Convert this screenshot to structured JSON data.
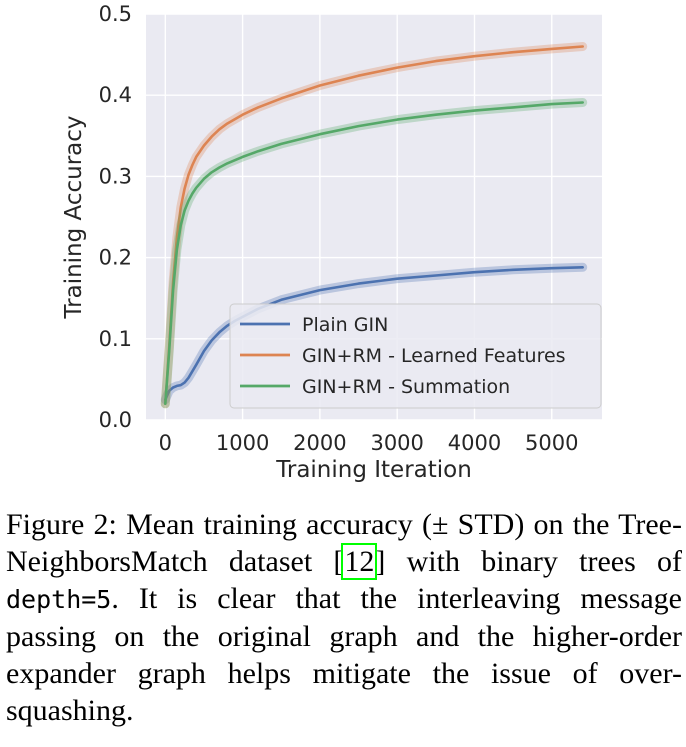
{
  "chart_data": {
    "type": "line",
    "xlabel": "Training Iteration",
    "ylabel": "Training Accuracy",
    "xticks": [
      0,
      1000,
      2000,
      3000,
      4000,
      5000
    ],
    "yticks": [
      0.0,
      0.1,
      0.2,
      0.3,
      0.4,
      0.5
    ],
    "xlim": [
      -250,
      5650
    ],
    "ylim": [
      0.0,
      0.5
    ],
    "grid": true,
    "legend_position": "lower-right",
    "series": [
      {
        "name": "Plain GIN",
        "color": "#4c72b0",
        "x": [
          0,
          50,
          100,
          150,
          200,
          250,
          300,
          400,
          500,
          600,
          700,
          800,
          900,
          1000,
          1200,
          1500,
          2000,
          2500,
          3000,
          3500,
          4000,
          4500,
          5000,
          5400
        ],
        "y": [
          0.025,
          0.036,
          0.04,
          0.042,
          0.043,
          0.046,
          0.052,
          0.068,
          0.085,
          0.098,
          0.108,
          0.116,
          0.122,
          0.127,
          0.137,
          0.148,
          0.16,
          0.168,
          0.174,
          0.178,
          0.182,
          0.185,
          0.187,
          0.188
        ]
      },
      {
        "name": "GIN+RM - Learned Features",
        "color": "#dd8452",
        "x": [
          0,
          50,
          100,
          150,
          200,
          250,
          300,
          350,
          400,
          500,
          600,
          700,
          800,
          1000,
          1200,
          1500,
          2000,
          2500,
          3000,
          3500,
          4000,
          4500,
          5000,
          5400
        ],
        "y": [
          0.02,
          0.09,
          0.17,
          0.225,
          0.262,
          0.285,
          0.302,
          0.314,
          0.324,
          0.338,
          0.349,
          0.358,
          0.365,
          0.376,
          0.385,
          0.396,
          0.412,
          0.424,
          0.434,
          0.442,
          0.448,
          0.453,
          0.457,
          0.46
        ]
      },
      {
        "name": "GIN+RM - Summation",
        "color": "#55a868",
        "x": [
          0,
          50,
          100,
          150,
          200,
          250,
          300,
          350,
          400,
          500,
          600,
          700,
          800,
          1000,
          1200,
          1500,
          2000,
          2500,
          3000,
          3500,
          4000,
          4500,
          5000,
          5400
        ],
        "y": [
          0.02,
          0.085,
          0.16,
          0.21,
          0.24,
          0.258,
          0.27,
          0.279,
          0.286,
          0.297,
          0.305,
          0.311,
          0.316,
          0.324,
          0.331,
          0.34,
          0.352,
          0.362,
          0.37,
          0.376,
          0.381,
          0.385,
          0.389,
          0.391
        ]
      }
    ]
  },
  "caption": {
    "prefix": "Figure 2: Mean training accuracy (± STD) on the Tree-NeighborsMatch dataset [",
    "ref": "12",
    "middle": "] with binary trees of ",
    "code": "depth=5",
    "suffix": ". It is clear that the interleaving message passing on the original graph and the higher-order expander graph helps mitigate the issue of over-squashing."
  }
}
